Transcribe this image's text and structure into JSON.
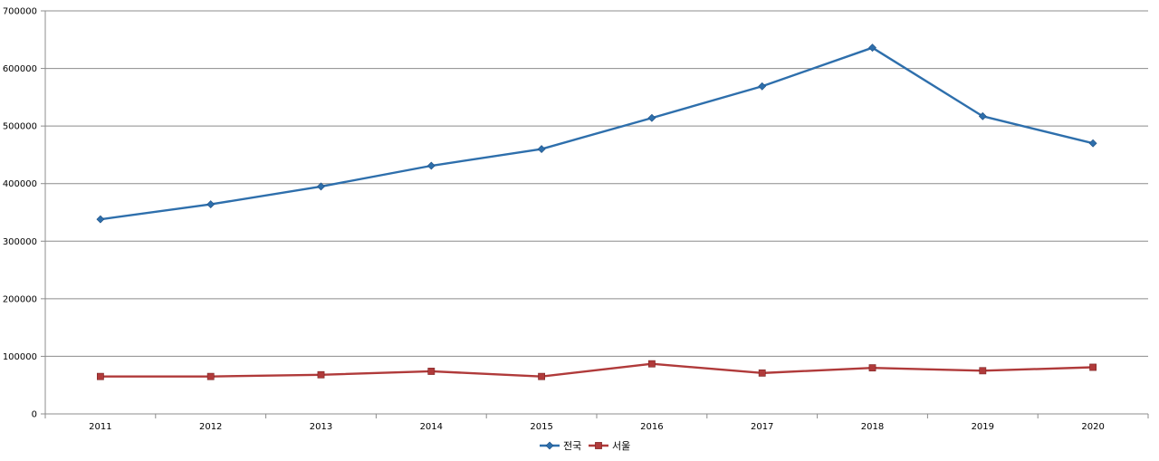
{
  "chart_data": {
    "type": "line",
    "x": [
      "2011",
      "2012",
      "2013",
      "2014",
      "2015",
      "2016",
      "2017",
      "2018",
      "2019",
      "2020"
    ],
    "series": [
      {
        "name": "전국",
        "color": "#2e6fac",
        "marker": "diamond",
        "values": [
          338000,
          364000,
          395000,
          431000,
          460000,
          514000,
          569000,
          636000,
          517000,
          470000
        ]
      },
      {
        "name": "서울",
        "color": "#b03a3a",
        "marker": "square",
        "values": [
          65000,
          65000,
          68000,
          74000,
          65000,
          87000,
          71000,
          80000,
          75000,
          81000
        ]
      }
    ],
    "ylim": [
      0,
      700000
    ],
    "yticks": [
      "0",
      "100000",
      "200000",
      "300000",
      "400000",
      "500000",
      "600000",
      "700000"
    ],
    "grid": true,
    "legend": "bottom-center"
  }
}
